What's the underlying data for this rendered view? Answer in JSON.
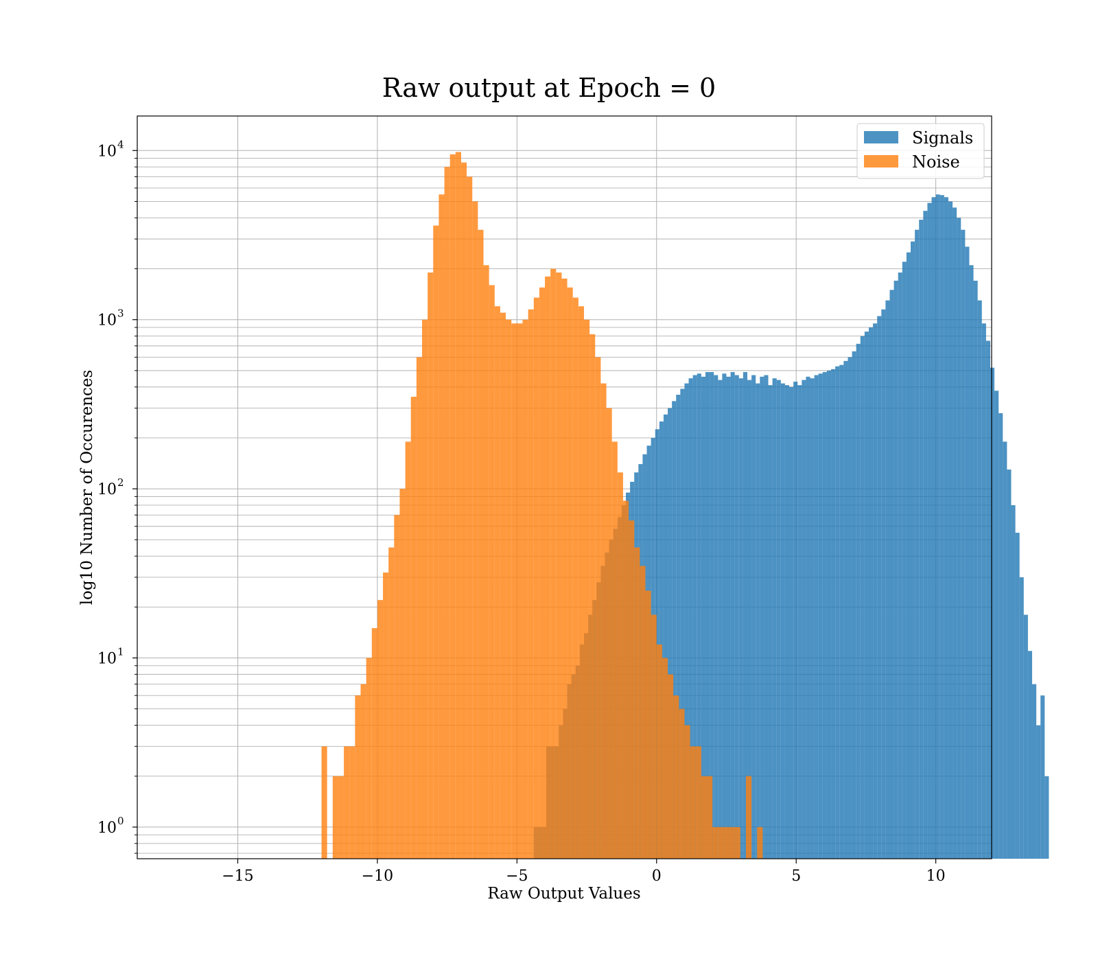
{
  "colors": {
    "signals": "#1f77b4",
    "noise": "#ff7f0e",
    "grid": "#b0b0b0"
  },
  "chart_data": {
    "type": "bar",
    "title": "Raw output at Epoch = 0",
    "xlabel": "Raw Output Values",
    "ylabel": "log10 Number of Occurences",
    "xlim": [
      -18.6,
      12.0
    ],
    "ylim": [
      0.65,
      16000
    ],
    "yscale": "log",
    "grid": true,
    "legend_position": "top-right",
    "xticks": [
      {
        "value": -15,
        "label": "−15"
      },
      {
        "value": -10,
        "label": "−10"
      },
      {
        "value": -5,
        "label": "−5"
      },
      {
        "value": 0,
        "label": "0"
      },
      {
        "value": 5,
        "label": "5"
      },
      {
        "value": 10,
        "label": "10"
      }
    ],
    "yticks": [
      {
        "value": 1,
        "base": "10",
        "exp": "0"
      },
      {
        "value": 10,
        "base": "10",
        "exp": "1"
      },
      {
        "value": 100,
        "base": "10",
        "exp": "2"
      },
      {
        "value": 1000,
        "base": "10",
        "exp": "3"
      },
      {
        "value": 10000,
        "base": "10",
        "exp": "4"
      }
    ],
    "series": [
      {
        "name": "Signals",
        "color": "#1f77b4",
        "opacity": 0.8,
        "bin_start": -4.4,
        "bin_width": 0.15,
        "counts": [
          1,
          1,
          1,
          3,
          3,
          3,
          4,
          5,
          7,
          8,
          9,
          12,
          14,
          18,
          22,
          28,
          35,
          42,
          50,
          58,
          68,
          80,
          95,
          110,
          125,
          140,
          160,
          180,
          200,
          225,
          250,
          275,
          300,
          330,
          360,
          390,
          420,
          450,
          470,
          480,
          460,
          490,
          490,
          470,
          440,
          480,
          460,
          490,
          470,
          450,
          490,
          440,
          470,
          420,
          460,
          470,
          410,
          450,
          440,
          420,
          410,
          400,
          430,
          410,
          440,
          460,
          450,
          470,
          480,
          490,
          500,
          510,
          530,
          540,
          570,
          600,
          650,
          720,
          800,
          850,
          900,
          950,
          1050,
          1150,
          1300,
          1500,
          1700,
          1900,
          2200,
          2500,
          2900,
          3400,
          3900,
          4400,
          4900,
          5300,
          5500,
          5450,
          5300,
          5000,
          4600,
          4000,
          3400,
          2700,
          2100,
          1700,
          1300,
          950,
          750,
          520,
          380,
          280,
          190,
          130,
          80,
          55,
          30,
          18,
          11,
          7,
          4,
          6,
          2
        ]
      },
      {
        "name": "Noise",
        "color": "#ff7f0e",
        "opacity": 0.8,
        "bin_start": -12.0,
        "bin_width": 0.2,
        "counts": [
          3,
          0,
          2,
          2,
          3,
          3,
          6,
          7,
          10,
          15,
          22,
          32,
          45,
          70,
          100,
          190,
          350,
          600,
          1000,
          1900,
          3600,
          5500,
          8000,
          9500,
          9800,
          8500,
          7000,
          5000,
          3400,
          2100,
          1600,
          1200,
          1100,
          1000,
          950,
          950,
          1000,
          1150,
          1350,
          1550,
          1800,
          2000,
          1900,
          1750,
          1550,
          1350,
          1200,
          1000,
          820,
          600,
          420,
          300,
          190,
          125,
          85,
          65,
          45,
          35,
          25,
          18,
          12,
          10,
          8,
          6,
          5,
          4,
          3,
          3,
          2,
          2,
          1,
          1,
          1,
          1,
          1,
          0,
          2,
          0,
          1,
          0,
          0
        ]
      }
    ]
  }
}
